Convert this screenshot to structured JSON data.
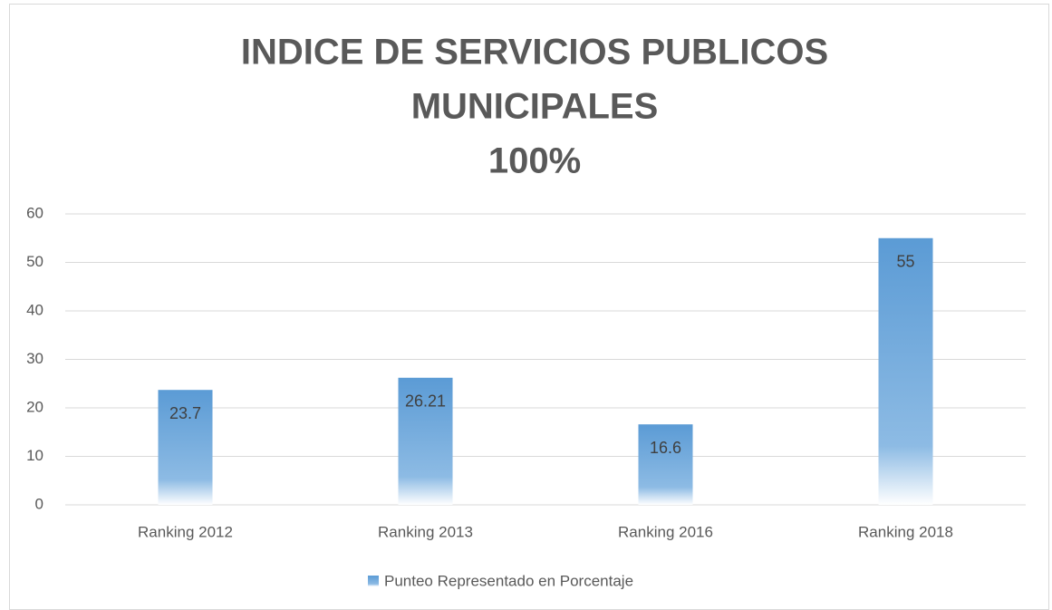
{
  "chart_data": {
    "type": "bar",
    "title": [
      "INDICE DE SERVICIOS PUBLICOS",
      "MUNICIPALES",
      "100%"
    ],
    "categories": [
      "Ranking 2012",
      "Ranking 2013",
      "Ranking 2016",
      "Ranking 2018"
    ],
    "series": [
      {
        "name": "Punteo Representado en Porcentaje",
        "color": "#5b9bd5",
        "values": [
          23.7,
          26.21,
          16.6,
          55
        ]
      }
    ],
    "ylim": [
      0,
      60
    ],
    "yticks": [
      0,
      10,
      20,
      30,
      40,
      50,
      60
    ],
    "grid": true,
    "legend": "bottom"
  }
}
